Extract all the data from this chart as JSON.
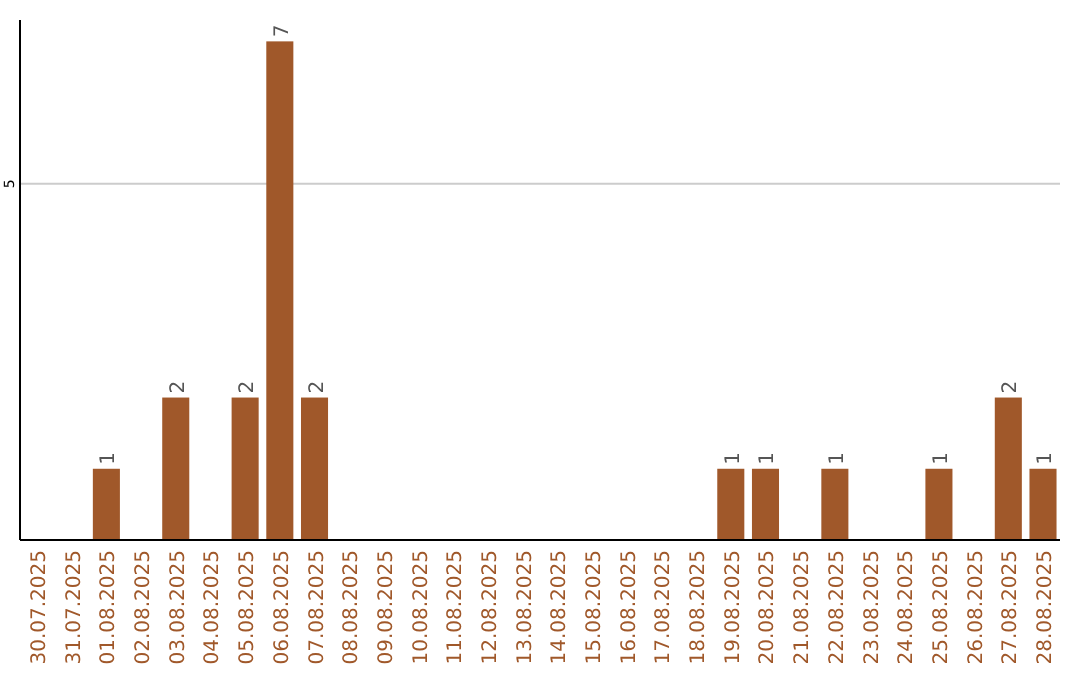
{
  "chart_data": {
    "type": "bar",
    "categories": [
      "30.07.2025",
      "31.07.2025",
      "01.08.2025",
      "02.08.2025",
      "03.08.2025",
      "04.08.2025",
      "05.08.2025",
      "06.08.2025",
      "07.08.2025",
      "08.08.2025",
      "09.08.2025",
      "10.08.2025",
      "11.08.2025",
      "12.08.2025",
      "13.08.2025",
      "14.08.2025",
      "15.08.2025",
      "16.08.2025",
      "17.08.2025",
      "18.08.2025",
      "19.08.2025",
      "20.08.2025",
      "21.08.2025",
      "22.08.2025",
      "23.08.2025",
      "24.08.2025",
      "25.08.2025",
      "26.08.2025",
      "27.08.2025",
      "28.08.2025"
    ],
    "values": [
      0,
      0,
      1,
      0,
      2,
      0,
      2,
      7,
      2,
      0,
      0,
      0,
      0,
      0,
      0,
      0,
      0,
      0,
      0,
      0,
      1,
      1,
      0,
      1,
      0,
      0,
      1,
      0,
      2,
      1
    ],
    "value_labels": [
      null,
      null,
      "1",
      null,
      "2",
      null,
      "2",
      "7",
      "2",
      null,
      null,
      null,
      null,
      null,
      null,
      null,
      null,
      null,
      null,
      null,
      "1",
      "1",
      null,
      "1",
      null,
      null,
      "1",
      null,
      "2",
      "1"
    ],
    "color": "#a0582a",
    "ylim": [
      0,
      7.3
    ],
    "yticks": [
      5
    ],
    "grid": "y"
  }
}
